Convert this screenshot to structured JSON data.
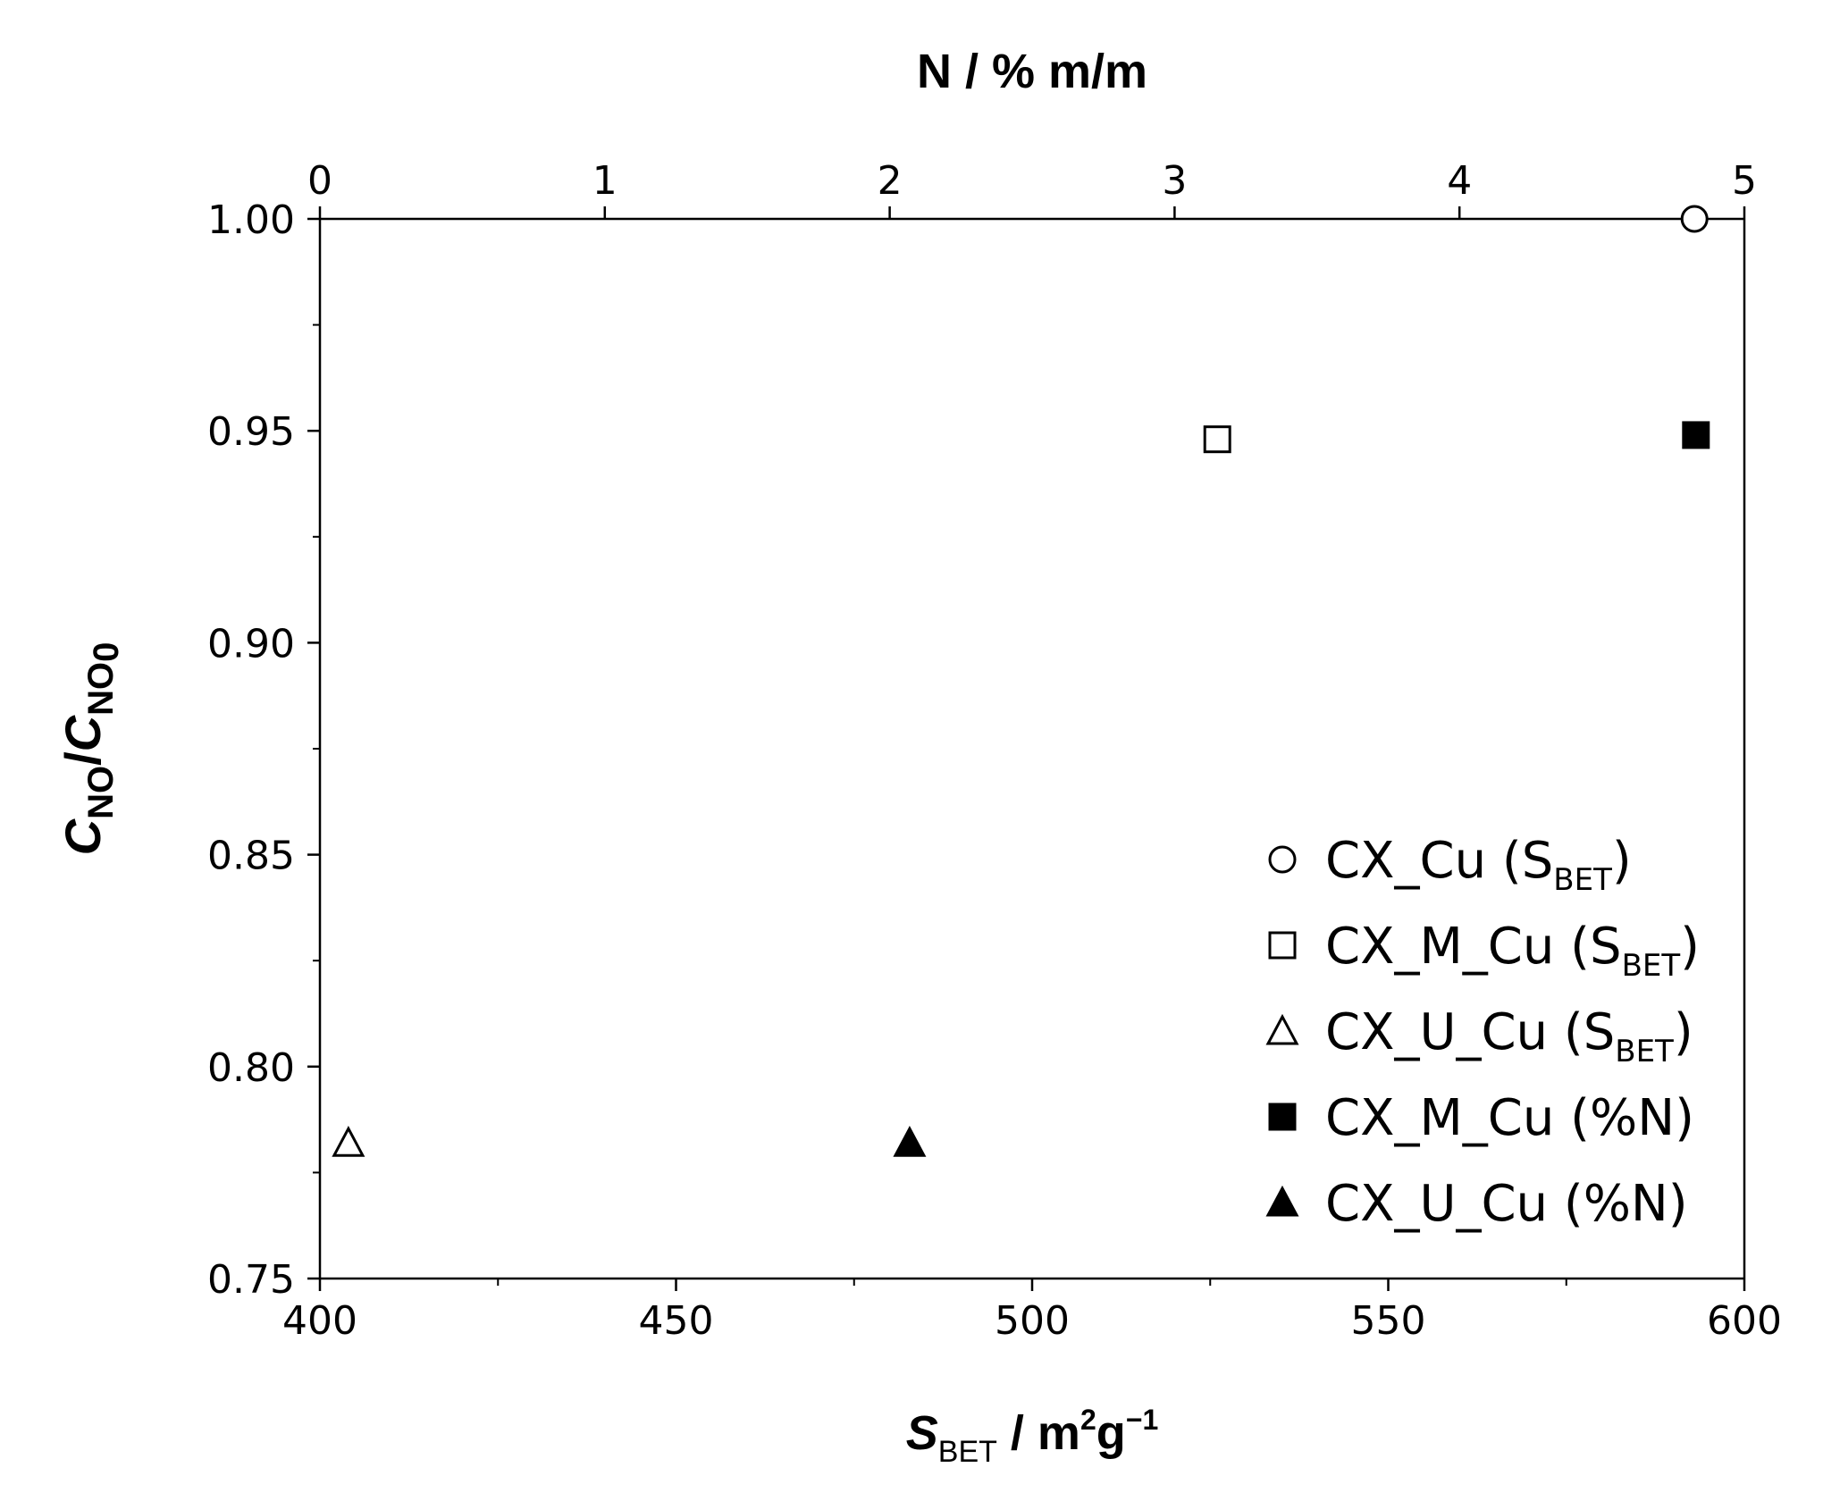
{
  "chart_data": {
    "type": "scatter",
    "title": "",
    "xlabel": {
      "main": "S",
      "sub": "BET",
      "rest": " / m",
      "sup1": "2",
      "mid": "g",
      "sup2": "−1"
    },
    "x2label": "N / % m/m",
    "ylabel": {
      "c1": "C",
      "sub1": "NO",
      "slash": "/",
      "c2": "C",
      "sub2": "NO",
      "sub2b": "0"
    },
    "xlim": [
      400,
      600
    ],
    "x2lim": [
      0,
      5
    ],
    "ylim": [
      0.75,
      1.0
    ],
    "x_ticks": [
      "400",
      "450",
      "500",
      "550",
      "600"
    ],
    "x2_ticks": [
      "0",
      "1",
      "2",
      "3",
      "4",
      "5"
    ],
    "y_ticks": [
      "0.75",
      "0.80",
      "0.85",
      "0.90",
      "0.95",
      "1.00"
    ],
    "x_tick_values": [
      400,
      450,
      500,
      550,
      600
    ],
    "x2_tick_values": [
      0,
      1,
      2,
      3,
      4,
      5
    ],
    "y_tick_values": [
      0.75,
      0.8,
      0.85,
      0.9,
      0.95,
      1.0
    ],
    "grid": false,
    "legend_position": "bottom-right",
    "series": [
      {
        "name": "CX_Cu (S",
        "name_sub": "BET",
        "name_tail": ")",
        "marker": "circle-open",
        "axis": "bottom",
        "points": [
          {
            "x": 593,
            "y": 1.0
          }
        ]
      },
      {
        "name": "CX_M_Cu (S",
        "name_sub": "BET",
        "name_tail": ")",
        "marker": "square-open",
        "axis": "bottom",
        "points": [
          {
            "x": 526,
            "y": 0.948
          }
        ]
      },
      {
        "name": "CX_U_Cu (S",
        "name_sub": "BET",
        "name_tail": ")",
        "marker": "triangle-open",
        "axis": "bottom",
        "points": [
          {
            "x": 404,
            "y": 0.782
          }
        ]
      },
      {
        "name": "CX_M_Cu (%N)",
        "name_sub": "",
        "name_tail": "",
        "marker": "square-filled",
        "axis": "top",
        "points": [
          {
            "x": 4.83,
            "y": 0.949
          }
        ]
      },
      {
        "name": "CX_U_Cu (%N)",
        "name_sub": "",
        "name_tail": "",
        "marker": "triangle-filled",
        "axis": "top",
        "points": [
          {
            "x": 2.07,
            "y": 0.782
          }
        ]
      }
    ]
  }
}
